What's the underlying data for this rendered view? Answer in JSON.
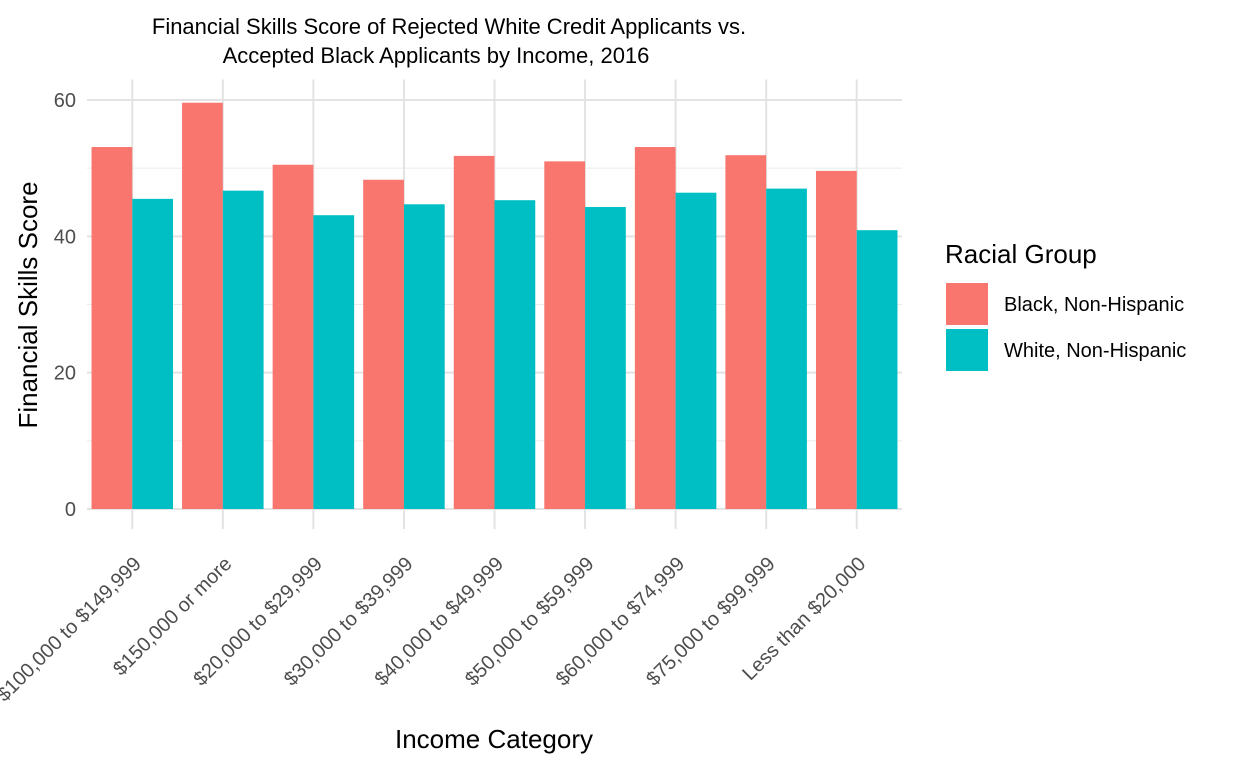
{
  "chart_data": {
    "type": "bar",
    "title_lines": [
      "Financial Skills Score of Rejected White Credit Applicants vs.",
      "Accepted Black Applicants by Income, 2016"
    ],
    "xlabel": "Income Category",
    "ylabel": "Financial Skills Score",
    "categories": [
      "$100,000 to $149,999",
      "$150,000 or more",
      "$20,000 to $29,999",
      "$30,000 to $39,999",
      "$40,000 to $49,999",
      "$50,000 to $59,999",
      "$60,000 to $74,999",
      "$75,000 to $99,999",
      "Less than $20,000"
    ],
    "series": [
      {
        "name": "Black, Non-Hispanic",
        "color": "#F8766D",
        "values": [
          53.1,
          59.6,
          50.5,
          48.3,
          51.8,
          51.0,
          53.1,
          51.9,
          49.6
        ]
      },
      {
        "name": "White, Non-Hispanic",
        "color": "#00BFC4",
        "values": [
          45.5,
          46.7,
          43.1,
          44.7,
          45.3,
          44.3,
          46.4,
          47.0,
          40.9
        ]
      }
    ],
    "yticks": [
      0,
      20,
      40,
      60
    ],
    "ylim": [
      0,
      63
    ],
    "grid": true,
    "legend": {
      "title": "Racial Group",
      "position": "right"
    }
  }
}
